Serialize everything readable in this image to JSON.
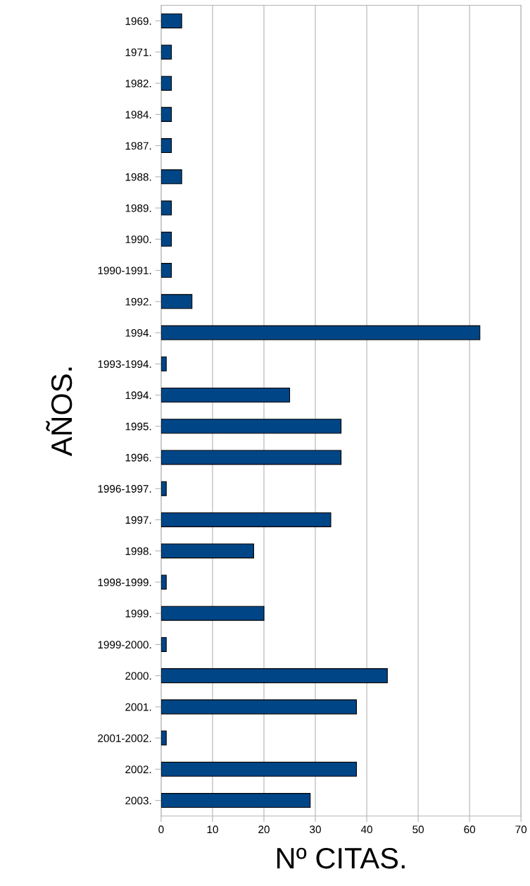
{
  "chart_data": {
    "type": "bar",
    "orientation": "horizontal",
    "xlabel": "Nº CITAS.",
    "ylabel": "AÑOS.",
    "categories": [
      "1969.",
      "1971.",
      "1982.",
      "1984.",
      "1987.",
      "1988.",
      "1989.",
      "1990.",
      "1990-1991.",
      "1992.",
      "1994.",
      "1993-1994.",
      "1994.",
      "1995.",
      "1996.",
      "1996-1997.",
      "1997.",
      "1998.",
      "1998-1999.",
      "1999.",
      "1999-2000.",
      "2000.",
      "2001.",
      "2001-2002.",
      "2002.",
      "2003."
    ],
    "values": [
      4,
      2,
      2,
      2,
      2,
      4,
      2,
      2,
      2,
      6,
      62,
      1,
      25,
      35,
      35,
      1,
      33,
      18,
      1,
      20,
      1,
      44,
      38,
      1,
      38,
      29
    ],
    "color": "#004586",
    "xlim": [
      0,
      70
    ],
    "xticks": [
      0,
      10,
      20,
      30,
      40,
      50,
      60,
      70
    ],
    "grid": "x"
  }
}
